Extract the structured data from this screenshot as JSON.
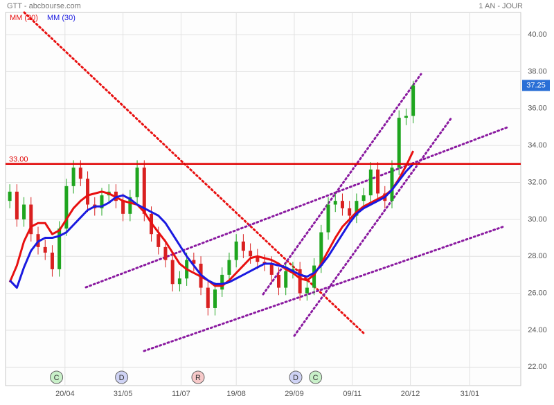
{
  "chart_data": {
    "type": "candlestick",
    "title": "GTT - abcbourse.com",
    "period": "1 AN - JOUR",
    "x": [
      3,
      8,
      13,
      18,
      23,
      28,
      33,
      38,
      43,
      48,
      53,
      58,
      63,
      68,
      73,
      78,
      83,
      88,
      93,
      98,
      103,
      108,
      113,
      118,
      123,
      128,
      133,
      138,
      143,
      148,
      153,
      158,
      163,
      168,
      173,
      178,
      183,
      188,
      193,
      198,
      203,
      208,
      213,
      218,
      223,
      228,
      233,
      238,
      243,
      248,
      253,
      258,
      263,
      268,
      273,
      278,
      283,
      288
    ],
    "open": [
      31.0,
      31.5,
      30,
      30.8,
      29.2,
      28.5,
      28.2,
      27.3,
      29.5,
      31.8,
      32.8,
      32.2,
      30.8,
      30.6,
      31.3,
      31.5,
      31,
      30.3,
      31.2,
      32.8,
      30.3,
      29.2,
      28.5,
      27.8,
      26.5,
      26.8,
      27.8,
      27.6,
      26.3,
      25.2,
      26.2,
      27,
      27.8,
      28.8,
      28.3,
      28,
      27.7,
      27.6,
      27,
      26.3,
      27.2,
      27.3,
      26,
      26.3,
      27.5,
      29.3,
      30.8,
      31,
      30.6,
      30.2,
      31,
      31.3,
      32.7,
      31.4,
      31,
      32.8,
      35.5,
      35.6
    ],
    "high": [
      31.9,
      31.9,
      31.2,
      31.2,
      29.6,
      28.9,
      28.6,
      29.9,
      32.2,
      33.2,
      33.2,
      32.6,
      31.2,
      31.7,
      31.9,
      31.9,
      31.4,
      31.6,
      33.2,
      33.2,
      30.7,
      29.6,
      28.9,
      28.2,
      27.2,
      28.2,
      28.2,
      28,
      26.7,
      26.6,
      27.4,
      28.2,
      29.2,
      29.2,
      28.7,
      28.4,
      28.1,
      28,
      27.4,
      27.6,
      27.7,
      27.7,
      26.7,
      27.9,
      29.7,
      31.2,
      31.4,
      31.4,
      31,
      31.4,
      31.7,
      33.1,
      33.1,
      31.8,
      33.2,
      35.9,
      36,
      37.5
    ],
    "low": [
      30.6,
      29.6,
      29.6,
      28.8,
      28.1,
      27.8,
      26.9,
      26.9,
      29.1,
      31.4,
      31.8,
      30.4,
      30.2,
      30.2,
      30.9,
      30.6,
      29.9,
      29.9,
      30.8,
      29.9,
      28.8,
      28.1,
      27.4,
      26.1,
      26.1,
      26.4,
      27.2,
      25.9,
      24.8,
      24.8,
      25.8,
      26.6,
      27.4,
      27.9,
      27.6,
      27.3,
      27.2,
      26.6,
      25.9,
      25.9,
      26.8,
      25.6,
      25.6,
      25.9,
      27.1,
      28.9,
      30.4,
      30.2,
      29.8,
      29.8,
      30.6,
      30.9,
      31,
      30.6,
      30.6,
      32.4,
      35.1,
      35.2
    ],
    "close": [
      31.5,
      30,
      30.8,
      29.2,
      28.5,
      28.2,
      27.3,
      29.5,
      31.8,
      32.8,
      32.2,
      30.8,
      30.6,
      31.3,
      31.5,
      31,
      30.3,
      31.2,
      32.8,
      30.3,
      29.2,
      28.5,
      27.8,
      26.5,
      26.8,
      27.8,
      27.6,
      26.3,
      25.2,
      26.2,
      27,
      27.8,
      28.8,
      28.3,
      28,
      27.7,
      27.6,
      27,
      26.3,
      27.2,
      27.3,
      26,
      26.3,
      27.5,
      29.3,
      30.8,
      31,
      30.6,
      30.2,
      31,
      31.3,
      32.7,
      31.4,
      31,
      32.8,
      35.5,
      35.6,
      37.25
    ],
    "up_color": "#1fa51f",
    "down_color": "#d92020",
    "series": [
      {
        "name": "MM (20)",
        "color": "#e81010",
        "values": [
          26.6,
          27.5,
          28.8,
          29.6,
          29.8,
          29.8,
          29.2,
          29.4,
          30.0,
          30.6,
          31.0,
          31.3,
          31.4,
          31.5,
          31.4,
          31.2,
          31.0,
          30.9,
          30.8,
          30.4,
          29.8,
          29.3,
          28.8,
          28.2,
          27.6,
          27.3,
          27.1,
          26.9,
          26.7,
          26.4,
          26.4,
          26.7,
          27.1,
          27.5,
          27.9,
          28.0,
          27.9,
          27.8,
          27.6,
          27.3,
          27.1,
          26.8,
          26.7,
          27.0,
          27.6,
          28.3,
          29.0,
          29.6,
          30.0,
          30.4,
          30.7,
          30.9,
          31.1,
          31.3,
          31.6,
          32.2,
          32.9,
          33.7
        ]
      },
      {
        "name": "MM (30)",
        "color": "#1a1ae0",
        "values": [
          26.7,
          26.3,
          27.4,
          28.3,
          28.8,
          29.0,
          29.0,
          29.1,
          29.3,
          29.7,
          30.1,
          30.5,
          30.7,
          30.7,
          30.9,
          31.2,
          31.3,
          31.1,
          30.8,
          30.6,
          30.4,
          30.2,
          29.8,
          29.2,
          28.6,
          28.0,
          27.5,
          27.0,
          26.7,
          26.5,
          26.5,
          26.6,
          26.8,
          27.0,
          27.2,
          27.4,
          27.6,
          27.6,
          27.5,
          27.4,
          27.2,
          27.0,
          26.9,
          27.1,
          27.5,
          28.0,
          28.6,
          29.2,
          29.8,
          30.3,
          30.6,
          30.8,
          31.0,
          31.2,
          31.6,
          32.1,
          32.6,
          33.0
        ]
      }
    ],
    "xlim": [
      0,
      364
    ],
    "xticks": [
      {
        "value": 42,
        "label": "20/04"
      },
      {
        "value": 83,
        "label": "31/05"
      },
      {
        "value": 124,
        "label": "11/07"
      },
      {
        "value": 163,
        "label": "19/08"
      },
      {
        "value": 204,
        "label": "29/09"
      },
      {
        "value": 245,
        "label": "09/11"
      },
      {
        "value": 286,
        "label": "20/12"
      },
      {
        "value": 328,
        "label": "31/01"
      }
    ],
    "ylim": [
      21,
      41.2
    ],
    "yticks": [
      {
        "value": 22,
        "label": "22.00"
      },
      {
        "value": 24,
        "label": "24.00"
      },
      {
        "value": 26,
        "label": "26.00"
      },
      {
        "value": 28,
        "label": "28.00"
      },
      {
        "value": 30,
        "label": "30.00"
      },
      {
        "value": 32,
        "label": "32.00"
      },
      {
        "value": 34,
        "label": "34.00"
      },
      {
        "value": 36,
        "label": "36.00"
      },
      {
        "value": 38,
        "label": "38.00"
      },
      {
        "value": 40,
        "label": "40.00"
      }
    ],
    "grid": true,
    "hline": {
      "value": 33,
      "label": "33.00",
      "color": "#e00000"
    },
    "last_price": {
      "value": 37.25,
      "label": "37.25"
    },
    "events": [
      {
        "x": 36,
        "label": "C",
        "color": "#c9f0c9"
      },
      {
        "x": 82,
        "label": "D",
        "color": "#cfd3f5"
      },
      {
        "x": 136,
        "label": "R",
        "color": "#f7c9c9"
      },
      {
        "x": 205,
        "label": "D",
        "color": "#cfd3f5"
      },
      {
        "x": 219,
        "label": "C",
        "color": "#c9f0c9"
      }
    ]
  }
}
